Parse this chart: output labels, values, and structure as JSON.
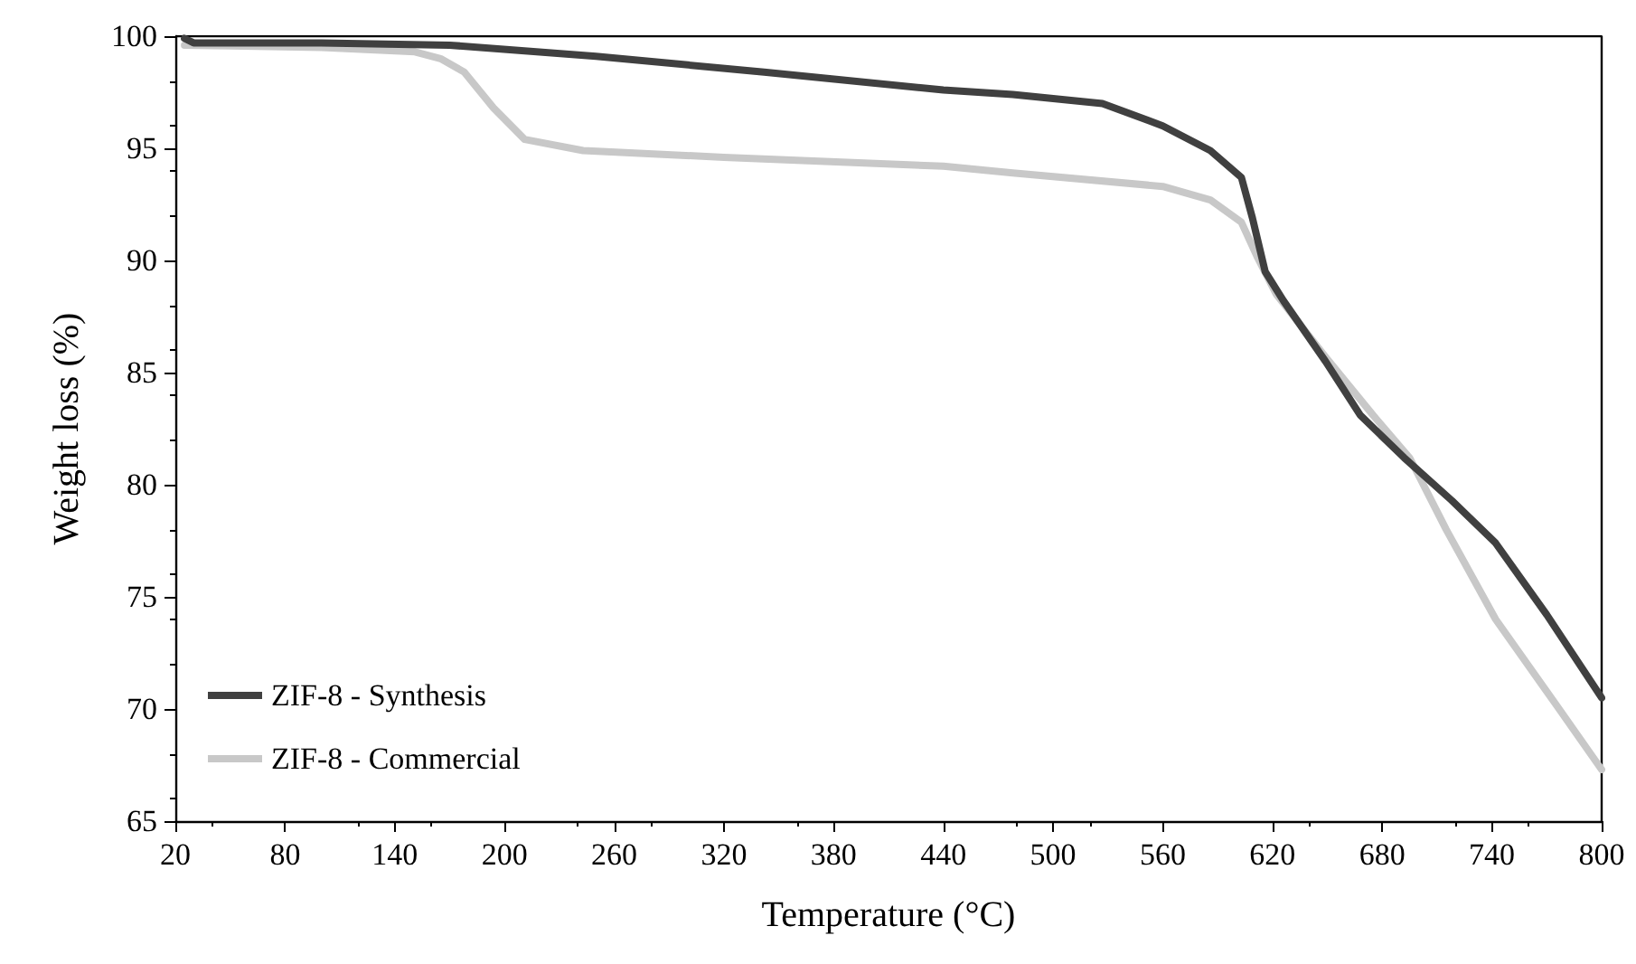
{
  "chart_data": {
    "type": "line",
    "xlabel": "Temperature (°C)",
    "ylabel": "Weight loss (%)",
    "xlim": [
      20,
      800
    ],
    "xticks": [
      20,
      80,
      140,
      200,
      260,
      320,
      380,
      440,
      500,
      560,
      620,
      680,
      740,
      800
    ],
    "ylim": [
      65,
      100
    ],
    "yticks": [
      65,
      70,
      75,
      80,
      85,
      90,
      95,
      100
    ],
    "grid": false,
    "legend": "bottom left",
    "marker": "none",
    "line_style": "solid",
    "series": [
      {
        "name": "ZIF-8 - Synthesis",
        "color": "#404040",
        "x": [
          25,
          30,
          100,
          170,
          250,
          342,
          440,
          478,
          527,
          560,
          586,
          603,
          609,
          616,
          626,
          649,
          668,
          692,
          718,
          742,
          770,
          800
        ],
        "values": [
          99.9,
          99.7,
          99.7,
          99.6,
          99.1,
          98.4,
          97.6,
          97.4,
          97.0,
          96.0,
          94.9,
          93.7,
          91.9,
          89.5,
          88.2,
          85.5,
          83.1,
          81.2,
          79.3,
          77.4,
          74.2,
          70.5
        ]
      },
      {
        "name": "ZIF-8 - Commercial",
        "color": "#c8c8c8",
        "x": [
          25,
          100,
          151,
          165,
          178,
          194,
          211,
          243,
          320,
          440,
          478,
          560,
          586,
          603,
          612,
          622,
          649,
          675,
          695,
          715,
          742,
          775,
          800
        ],
        "values": [
          99.6,
          99.5,
          99.3,
          99.0,
          98.4,
          96.8,
          95.4,
          94.9,
          94.6,
          94.2,
          93.9,
          93.3,
          92.7,
          91.7,
          90.1,
          88.5,
          85.7,
          83.1,
          81.2,
          78.0,
          74.0,
          70.2,
          67.3
        ]
      }
    ]
  }
}
